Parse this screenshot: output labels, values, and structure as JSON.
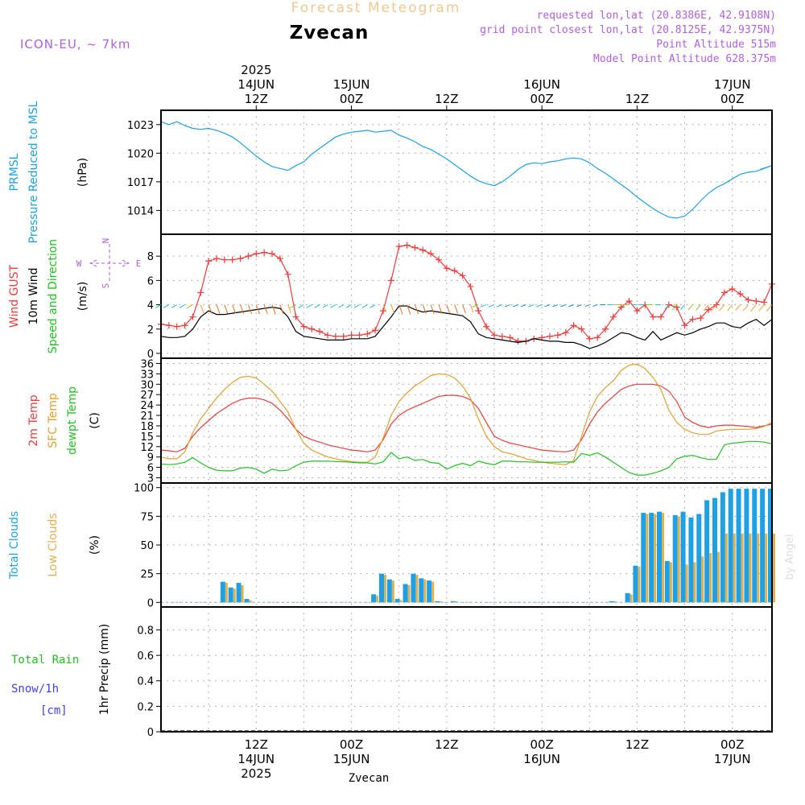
{
  "header": {
    "title": "Forecast Meteogram",
    "location": "Zvecan",
    "model": "ICON-EU, ~ 7km",
    "requested": "requested lon,lat (20.8386E, 42.9108N)",
    "grid_point": "grid point closest lon,lat (20.8125E, 42.9375N)",
    "point_altitude": "Point Altitude 515m",
    "model_altitude": "Model Point Altitude 628.375m",
    "footer_location": "Zvecan",
    "watermark": "by Angel"
  },
  "colors": {
    "pressure": "#1ea0e6",
    "gust": "#ee3b3b",
    "wind": "#000000",
    "temp": "#ee3b3b",
    "sfc": "#e0a030",
    "dewpt": "#22c022",
    "total_clouds": "#1ea0e6",
    "low_clouds": "#e0b050",
    "rain": "#22c022",
    "snow": "#4040ff",
    "info": "#b060e0",
    "title": "#f0c890"
  },
  "time_axis": {
    "top_labels": [
      {
        "t": 12,
        "lines": [
          "2025",
          "14JUN",
          "12Z"
        ]
      },
      {
        "t": 24,
        "lines": [
          "15JUN",
          "00Z"
        ]
      },
      {
        "t": 36,
        "lines": [
          "12Z"
        ]
      },
      {
        "t": 48,
        "lines": [
          "16JUN",
          "00Z"
        ]
      },
      {
        "t": 60,
        "lines": [
          "12Z"
        ]
      },
      {
        "t": 72,
        "lines": [
          "17JUN",
          "00Z"
        ]
      }
    ],
    "bottom_labels": [
      {
        "t": 12,
        "lines": [
          "12Z",
          "14JUN",
          "2025"
        ]
      },
      {
        "t": 24,
        "lines": [
          "00Z",
          "15JUN"
        ]
      },
      {
        "t": 36,
        "lines": [
          "12Z"
        ]
      },
      {
        "t": 48,
        "lines": [
          "00Z",
          "16JUN"
        ]
      },
      {
        "t": 60,
        "lines": [
          "12Z"
        ]
      },
      {
        "t": 72,
        "lines": [
          "00Z",
          "17JUN"
        ]
      }
    ]
  },
  "chart_data": [
    {
      "type": "line",
      "panel": "pressure",
      "ylabels": [
        "PRMSL",
        "Pressure Reduced to MSL"
      ],
      "unit": "(hPa)",
      "ylim": [
        1011.5,
        1024.5
      ],
      "yticks": [
        1014,
        1017,
        1020,
        1023
      ],
      "x": [
        0,
        1,
        2,
        3,
        4,
        5,
        6,
        7,
        8,
        9,
        10,
        11,
        12,
        13,
        14,
        15,
        16,
        17,
        18,
        19,
        20,
        21,
        22,
        23,
        24,
        25,
        26,
        27,
        28,
        29,
        30,
        31,
        32,
        33,
        34,
        35,
        36,
        37,
        38,
        39,
        40,
        41,
        42,
        43,
        44,
        45,
        46,
        47,
        48,
        49,
        50,
        51,
        52,
        53,
        54,
        55,
        56,
        57,
        58,
        59,
        60,
        61,
        62,
        63,
        64,
        65,
        66,
        67,
        67,
        68,
        69,
        70,
        71,
        72,
        73,
        74,
        75,
        76,
        77,
        75.5
      ],
      "series": [
        {
          "name": "PRMSL",
          "values": [
            1023.3,
            1023,
            1023.3,
            1022.9,
            1022.6,
            1022.5,
            1022.6,
            1022.4,
            1022.1,
            1021.7,
            1021.1,
            1020.4,
            1019.7,
            1019.1,
            1018.6,
            1018.4,
            1018.2,
            1018.7,
            1019.1,
            1019.9,
            1020.5,
            1021.1,
            1021.7,
            1022.0,
            1022.2,
            1022.3,
            1022.4,
            1022.2,
            1022.3,
            1022.4,
            1021.9,
            1021.6,
            1021.2,
            1020.7,
            1020.4,
            1019.9,
            1019.4,
            1018.8,
            1018.2,
            1017.6,
            1017.1,
            1016.8,
            1016.6,
            1017.0,
            1017.6,
            1018.3,
            1018.8,
            1019.0,
            1018.9,
            1019.1,
            1019.2,
            1019.4,
            1019.5,
            1019.4,
            1019.0,
            1018.4,
            1017.9,
            1017.3,
            1016.7,
            1016.1,
            1015.4,
            1014.8,
            1014.2,
            1013.7,
            1013.3,
            1013.2,
            1013.4,
            1014.1,
            1014.1,
            1015.0,
            1015.8,
            1016.4,
            1016.8,
            1017.3,
            1017.8,
            1018.0,
            1018.1,
            1018.4,
            1018.7,
            1018.3
          ]
        }
      ]
    },
    {
      "type": "line",
      "panel": "wind",
      "ylabels": [
        "Wind GUST",
        "10m Wind",
        "Speed and Direction"
      ],
      "unit": "(m/s)",
      "compass": {
        "n": "N",
        "s": "S",
        "e": "E",
        "w": "W"
      },
      "ylim": [
        -0.4,
        9.8
      ],
      "yticks": [
        0,
        2,
        4,
        6,
        8
      ],
      "x": [
        0,
        1,
        2,
        3,
        4,
        5,
        6,
        7,
        8,
        9,
        10,
        11,
        12,
        13,
        14,
        15,
        16,
        17,
        18,
        19,
        20,
        21,
        22,
        23,
        24,
        25,
        26,
        27,
        28,
        29,
        30,
        31,
        32,
        33,
        34,
        35,
        36,
        37,
        38,
        39,
        40,
        41,
        42,
        43,
        44,
        45,
        46,
        47,
        48,
        49,
        50,
        51,
        52,
        53,
        54,
        55,
        56,
        57,
        58,
        59,
        60,
        61,
        62,
        63,
        64,
        65,
        66,
        67,
        68,
        69,
        70,
        71,
        72,
        73,
        74,
        75,
        76,
        77
      ],
      "series": [
        {
          "name": "Wind GUST",
          "values": [
            2.4,
            2.3,
            2.2,
            2.3,
            3.0,
            5.0,
            7.6,
            7.8,
            7.7,
            7.7,
            7.8,
            8.0,
            8.2,
            8.3,
            8.2,
            7.8,
            6.5,
            3.0,
            2.2,
            2.0,
            1.8,
            1.5,
            1.4,
            1.4,
            1.5,
            1.5,
            1.6,
            1.9,
            3.5,
            6.0,
            8.8,
            8.9,
            8.7,
            8.5,
            8.2,
            7.7,
            7.0,
            6.8,
            6.4,
            5.5,
            3.5,
            2.2,
            1.5,
            1.4,
            1.3,
            1.0,
            1.0,
            1.2,
            1.3,
            1.4,
            1.5,
            1.7,
            2.3,
            2.0,
            1.2,
            1.3,
            2.0,
            3.0,
            3.8,
            4.3,
            3.5,
            4.0,
            3.0,
            3.0,
            4.0,
            3.8,
            2.3,
            2.8,
            2.9,
            3.6,
            4.0,
            5.0,
            5.3,
            4.9,
            4.4,
            4.3,
            4.2,
            5.7
          ]
        },
        {
          "name": "10m Wind",
          "values": [
            1.4,
            1.3,
            1.3,
            1.4,
            2.0,
            3.0,
            3.5,
            3.2,
            3.2,
            3.3,
            3.4,
            3.5,
            3.6,
            3.7,
            3.8,
            3.7,
            3.0,
            1.8,
            1.4,
            1.3,
            1.2,
            1.1,
            1.1,
            1.1,
            1.2,
            1.2,
            1.2,
            1.4,
            2.2,
            3.0,
            3.9,
            3.9,
            3.6,
            3.4,
            3.5,
            3.4,
            3.3,
            3.2,
            3.1,
            2.6,
            1.6,
            1.3,
            1.2,
            1.1,
            1.0,
            0.9,
            1.0,
            1.2,
            1.1,
            1.0,
            1.0,
            0.9,
            0.9,
            0.7,
            0.4,
            0.6,
            0.9,
            1.3,
            1.7,
            1.6,
            1.3,
            1.1,
            1.8,
            1.1,
            1.4,
            1.7,
            1.5,
            1.7,
            2.0,
            2.2,
            2.5,
            2.5,
            2.2,
            2.1,
            2.5,
            2.8,
            2.3,
            2.8
          ]
        }
      ]
    },
    {
      "type": "line",
      "panel": "temperature",
      "ylabels": [
        "2m Temp",
        "SFC Temp",
        "dewpt Temp"
      ],
      "unit": "(C)",
      "ylim": [
        1.5,
        37.5
      ],
      "yticks": [
        3,
        6,
        9,
        12,
        15,
        18,
        21,
        24,
        27,
        30,
        33,
        36
      ],
      "x": [
        0,
        1,
        2,
        3,
        4,
        5,
        6,
        7,
        8,
        9,
        10,
        11,
        12,
        13,
        14,
        15,
        16,
        17,
        18,
        19,
        20,
        21,
        22,
        23,
        24,
        25,
        26,
        27,
        28,
        29,
        30,
        31,
        32,
        33,
        34,
        35,
        36,
        37,
        38,
        39,
        40,
        41,
        42,
        43,
        44,
        45,
        46,
        47,
        48,
        49,
        50,
        51,
        52,
        53,
        54,
        55,
        56,
        57,
        58,
        59,
        60,
        61,
        62,
        63,
        64,
        65,
        66,
        67,
        68,
        69,
        70,
        71,
        72,
        73,
        74,
        75,
        76,
        77
      ],
      "series": [
        {
          "name": "2m Temp",
          "values": [
            11,
            10.8,
            10.5,
            11.5,
            15,
            17.5,
            19.5,
            21.5,
            23,
            24.5,
            25.5,
            26,
            26,
            25.5,
            24.5,
            22.5,
            20,
            17,
            15,
            14,
            13.3,
            12.5,
            12,
            11.5,
            11,
            10.8,
            10.5,
            11,
            14,
            18.5,
            21,
            22.5,
            23.5,
            24.5,
            25.5,
            26.5,
            26.8,
            26.8,
            26.5,
            25.5,
            23,
            19,
            15,
            13.8,
            13,
            12.5,
            12,
            11.5,
            11,
            10.8,
            10.6,
            10.5,
            11,
            14,
            18.5,
            22,
            24.5,
            26.5,
            28.5,
            29.5,
            30,
            30,
            30,
            29.5,
            28,
            25,
            20.5,
            19,
            18,
            17.5,
            18,
            18.2,
            18.2,
            18,
            17.8,
            17.5,
            18,
            18.5
          ]
        },
        {
          "name": "SFC Temp",
          "values": [
            9,
            8.5,
            8.5,
            10.5,
            16,
            20,
            23,
            26,
            28.5,
            30.5,
            32,
            32.3,
            31.8,
            30,
            28,
            25,
            22,
            17,
            13,
            11,
            10,
            9,
            8.5,
            8,
            7.7,
            7.5,
            7.5,
            9,
            14.5,
            21,
            25,
            27.5,
            29.5,
            31,
            32.5,
            33,
            32.8,
            31.8,
            29.5,
            26,
            20,
            15,
            12,
            10.5,
            10,
            9.3,
            8.5,
            8,
            7.5,
            7.2,
            7,
            6.8,
            8,
            15,
            22,
            26.5,
            29,
            31,
            34,
            35.5,
            35.8,
            34.5,
            32,
            28.5,
            22.5,
            19,
            17,
            16,
            15.5,
            15.5,
            16.5,
            16.8,
            17,
            17,
            17,
            17.2,
            17.8,
            19
          ]
        },
        {
          "name": "dewpt Temp",
          "values": [
            7,
            6.8,
            7,
            7.5,
            8.8,
            7.3,
            6,
            5.2,
            5,
            5,
            5.8,
            6,
            5.5,
            4.3,
            5.5,
            5,
            5.2,
            6.5,
            7.5,
            7.8,
            7.8,
            7.8,
            7.7,
            7.6,
            7.5,
            7.3,
            7.3,
            7,
            7.6,
            10.3,
            8.5,
            9,
            8,
            8.3,
            7.4,
            7.2,
            5.5,
            6.5,
            7.2,
            6.5,
            7.8,
            7.2,
            6.8,
            7.8,
            7.8,
            7.6,
            7.6,
            7.5,
            7.5,
            7.5,
            7.5,
            7.6,
            7.5,
            10,
            9.5,
            10.2,
            9,
            7.5,
            6,
            4.5,
            3.8,
            3.8,
            4.3,
            5,
            6,
            8.5,
            9.2,
            9.5,
            8.8,
            8.3,
            8.4,
            12.5,
            13,
            13.2,
            13.5,
            13.5,
            13.3,
            12.8
          ]
        }
      ]
    },
    {
      "type": "bar",
      "panel": "clouds",
      "ylabels": [
        "Total Clouds",
        "Low Clouds"
      ],
      "unit": "(%)",
      "ylim": [
        -4,
        104
      ],
      "yticks": [
        0,
        25,
        50,
        75,
        100
      ],
      "x": [
        8,
        9,
        10,
        11,
        27,
        28,
        29,
        30,
        31,
        32,
        33,
        34,
        35,
        37,
        57,
        59,
        60,
        61,
        62,
        63,
        64,
        65,
        66,
        67,
        68,
        69,
        70,
        71,
        72,
        73,
        74,
        75,
        76,
        77
      ],
      "series": [
        {
          "name": "Total Clouds",
          "values": [
            18,
            13,
            17,
            3,
            7,
            25,
            20,
            3,
            16,
            25,
            21,
            19,
            1,
            1,
            1,
            8,
            32,
            78,
            78,
            79,
            36,
            76,
            79,
            74,
            77,
            89,
            91,
            96,
            99,
            99,
            99,
            99,
            99,
            99
          ]
        },
        {
          "name": "Low Clouds",
          "values": [
            17,
            12,
            15,
            2,
            6,
            24,
            19,
            2,
            15,
            24,
            20,
            18,
            1,
            1,
            1,
            7,
            31,
            77,
            77,
            78,
            35,
            75,
            33,
            35,
            40,
            43,
            44,
            60,
            60,
            60,
            60,
            60,
            60,
            60
          ]
        }
      ]
    },
    {
      "type": "line",
      "panel": "precip",
      "ylabels": [
        "1hr Precip (mm)"
      ],
      "left_labels": [
        "Total  Rain",
        "Snow/1h",
        "[cm]"
      ],
      "unit": "",
      "ylim": [
        0,
        0.98
      ],
      "yticks": [
        0,
        0.2,
        0.4,
        0.6,
        0.8
      ],
      "ytick_labels": [
        "0",
        "0.2",
        "0.4",
        "0.6",
        "0.8"
      ],
      "x": [
        0,
        77
      ],
      "series": [
        {
          "name": "Total Rain",
          "values": [
            0,
            0
          ]
        },
        {
          "name": "Snow/1h",
          "values": [
            0,
            0
          ]
        }
      ]
    }
  ]
}
